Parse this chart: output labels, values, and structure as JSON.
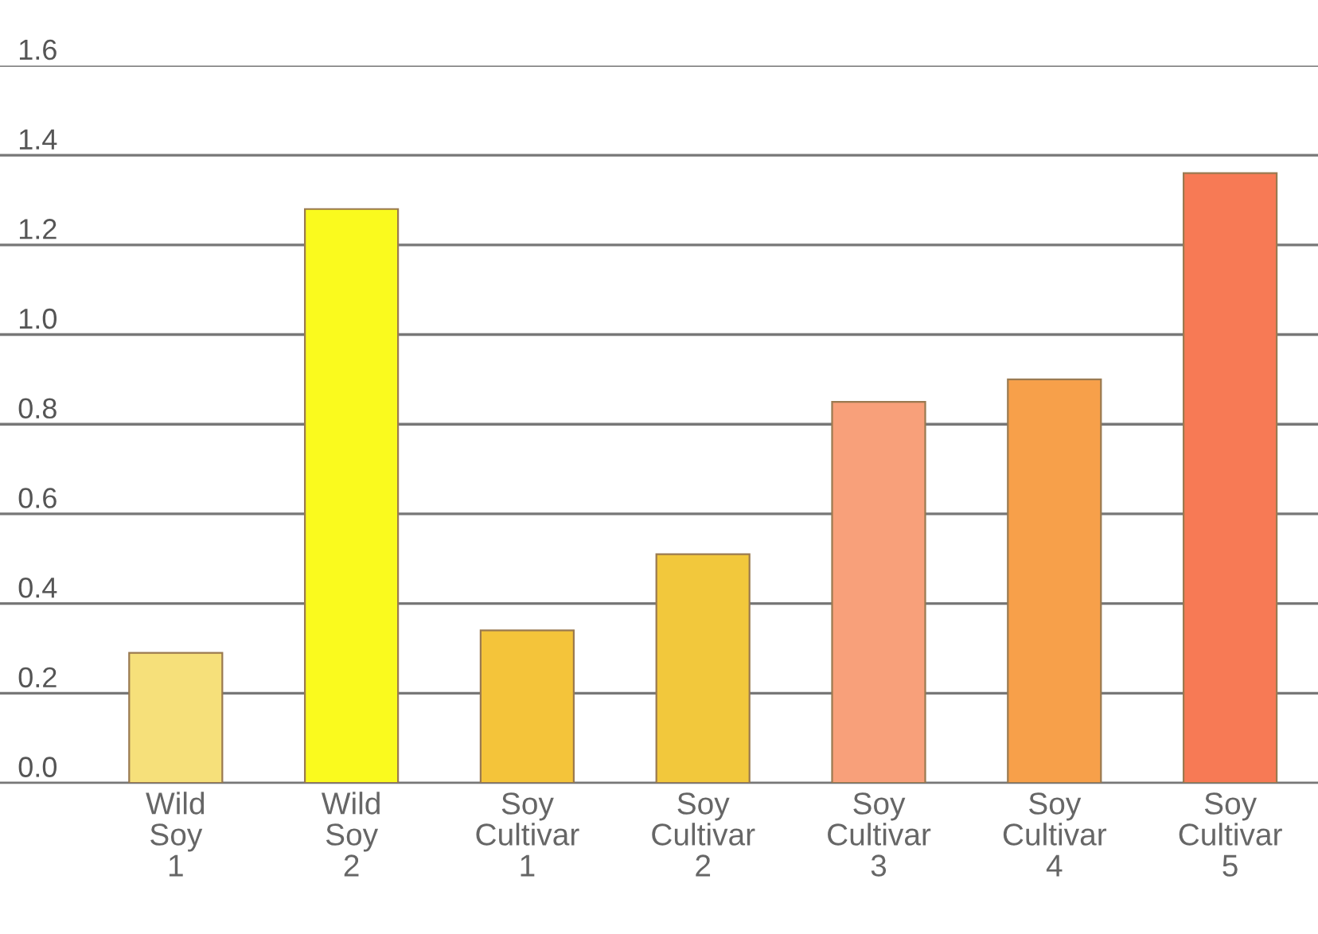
{
  "chart_data": {
    "type": "bar",
    "categories": [
      "Wild\nSoy\n1",
      "Wild\nSoy\n2",
      "Soy\nCultivar\n1",
      "Soy\nCultivar\n2",
      "Soy\nCultivar\n3",
      "Soy\nCultivar\n4",
      "Soy\nCultivar\n5"
    ],
    "values": [
      0.29,
      1.28,
      0.34,
      0.51,
      0.85,
      0.9,
      1.36
    ],
    "colors": [
      "#f6e07a",
      "#fafa1e",
      "#f4c43a",
      "#f2c83c",
      "#f8a07a",
      "#f7a04a",
      "#f77a55"
    ],
    "ylim": [
      0,
      1.6
    ],
    "yticks": [
      {
        "value": 0,
        "label": "0.0"
      },
      {
        "value": 0.2,
        "label": "0.2"
      },
      {
        "value": 0.4,
        "label": "0.4"
      },
      {
        "value": 0.6,
        "label": "0.6"
      },
      {
        "value": 0.8,
        "label": "0.8"
      },
      {
        "value": 1.0,
        "label": "1.0"
      },
      {
        "value": 1.2,
        "label": "1.2"
      },
      {
        "value": 1.4,
        "label": "1.4"
      },
      {
        "value": 1.6,
        "label": "1.6"
      }
    ],
    "grid": "y"
  }
}
